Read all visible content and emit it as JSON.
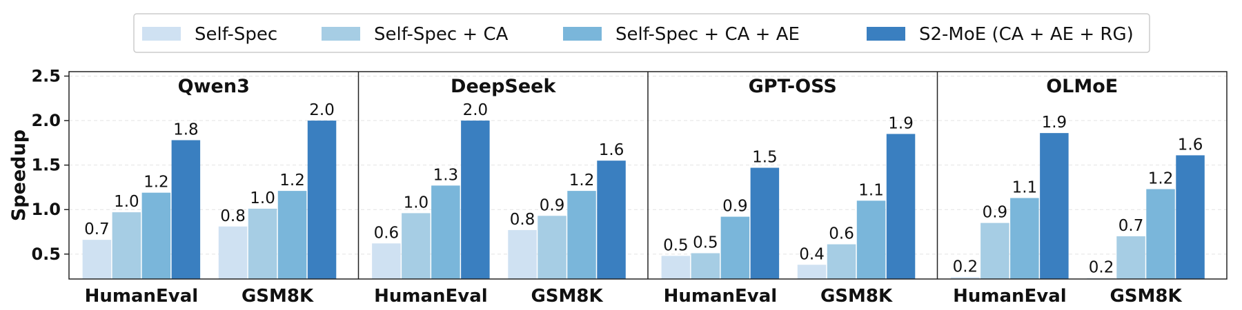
{
  "chart_data": {
    "type": "bar",
    "ylabel": "Speedup",
    "ylim": [
      0.22,
      2.55
    ],
    "yticks": [
      "0.5",
      "1.0",
      "1.5",
      "2.0",
      "2.5"
    ],
    "grid": "horizontal dashed",
    "legend_position": "top-center",
    "legend": [
      {
        "name": "Self-Spec",
        "color": "#cfe1f2"
      },
      {
        "name": "Self-Spec + CA",
        "color": "#a6cde4"
      },
      {
        "name": "Self-Spec + CA + AE",
        "color": "#7ab6da"
      },
      {
        "name": "S2-MoE (CA + AE + RG)",
        "color": "#3a7fc0"
      }
    ],
    "panels": [
      {
        "title": "Qwen3",
        "categories": [
          "HumanEval",
          "GSM8K"
        ],
        "values": [
          [
            0.66,
            0.97,
            1.19,
            1.78
          ],
          [
            0.81,
            1.01,
            1.21,
            2.0
          ]
        ],
        "labels": [
          [
            "0.7",
            "1.0",
            "1.2",
            "1.8"
          ],
          [
            "0.8",
            "1.0",
            "1.2",
            "2.0"
          ]
        ]
      },
      {
        "title": "DeepSeek",
        "categories": [
          "HumanEval",
          "GSM8K"
        ],
        "values": [
          [
            0.62,
            0.96,
            1.27,
            2.0
          ],
          [
            0.77,
            0.93,
            1.21,
            1.55
          ]
        ],
        "labels": [
          [
            "0.6",
            "1.0",
            "1.3",
            "2.0"
          ],
          [
            "0.8",
            "0.9",
            "1.2",
            "1.6"
          ]
        ]
      },
      {
        "title": "GPT-OSS",
        "categories": [
          "HumanEval",
          "GSM8K"
        ],
        "values": [
          [
            0.48,
            0.51,
            0.92,
            1.47
          ],
          [
            0.38,
            0.61,
            1.1,
            1.85
          ]
        ],
        "labels": [
          [
            "0.5",
            "0.5",
            "0.9",
            "1.5"
          ],
          [
            "0.4",
            "0.6",
            "1.1",
            "1.9"
          ]
        ]
      },
      {
        "title": "OLMoE",
        "categories": [
          "HumanEval",
          "GSM8K"
        ],
        "values": [
          [
            0.24,
            0.85,
            1.13,
            1.86
          ],
          [
            0.23,
            0.7,
            1.23,
            1.61
          ]
        ],
        "labels": [
          [
            "0.2",
            "0.9",
            "1.1",
            "1.9"
          ],
          [
            "0.2",
            "0.7",
            "1.2",
            "1.6"
          ]
        ]
      }
    ]
  }
}
